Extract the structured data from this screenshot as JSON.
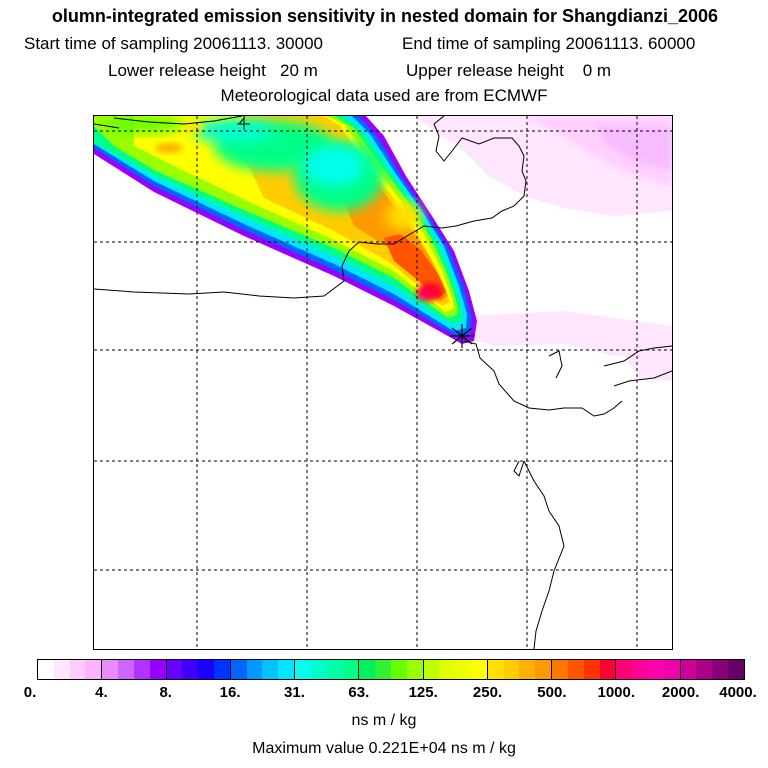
{
  "header": {
    "title": "olumn-integrated emission sensitivity in nested domain for Shangdianzi_2006",
    "start_label": "Start time of sampling",
    "start_value": "20061113. 30000",
    "end_label": "End time of sampling",
    "end_value": "20061113. 60000",
    "lower_label": "Lower release height",
    "lower_value": "20 m",
    "upper_label": "Upper release height",
    "upper_value": "0 m",
    "met_line": "Meteorological data used are from ECMWF"
  },
  "legend": {
    "ticks": [
      "0.",
      "4.",
      "8.",
      "16.",
      "31.",
      "63.",
      "125.",
      "250.",
      "500.",
      "1000.",
      "2000.",
      "4000."
    ],
    "colors": [
      [
        "#ffffff",
        "#ffe6ff",
        "#ffccff",
        "#ffb3ff"
      ],
      [
        "#e68cff",
        "#cc66ff",
        "#b233ff",
        "#9900ff"
      ],
      [
        "#6a00ff",
        "#4000ff",
        "#1a00ff",
        "#0033ff"
      ],
      [
        "#0066ff",
        "#0099ff",
        "#00c2ff",
        "#00e6ff"
      ],
      [
        "#00ffee",
        "#00ffcc",
        "#00ffaa",
        "#00ff88"
      ],
      [
        "#00f060",
        "#33f033",
        "#66ff00",
        "#99ff00"
      ],
      [
        "#bbff00",
        "#ddff00",
        "#eeff00",
        "#ffff00"
      ],
      [
        "#ffe000",
        "#ffcc00",
        "#ffb000",
        "#ff9900"
      ],
      [
        "#ff7700",
        "#ff5500",
        "#ff3300",
        "#ff0033"
      ],
      [
        "#ff0077",
        "#ff0099",
        "#ff00aa",
        "#ee00aa"
      ],
      [
        "#cc0099",
        "#aa0088",
        "#880077",
        "#660066"
      ]
    ],
    "units": "ns m / kg",
    "max_text": "Maximum value  0.221E+04 ns m / kg"
  },
  "map": {
    "release_marker": "release-site-marker"
  }
}
